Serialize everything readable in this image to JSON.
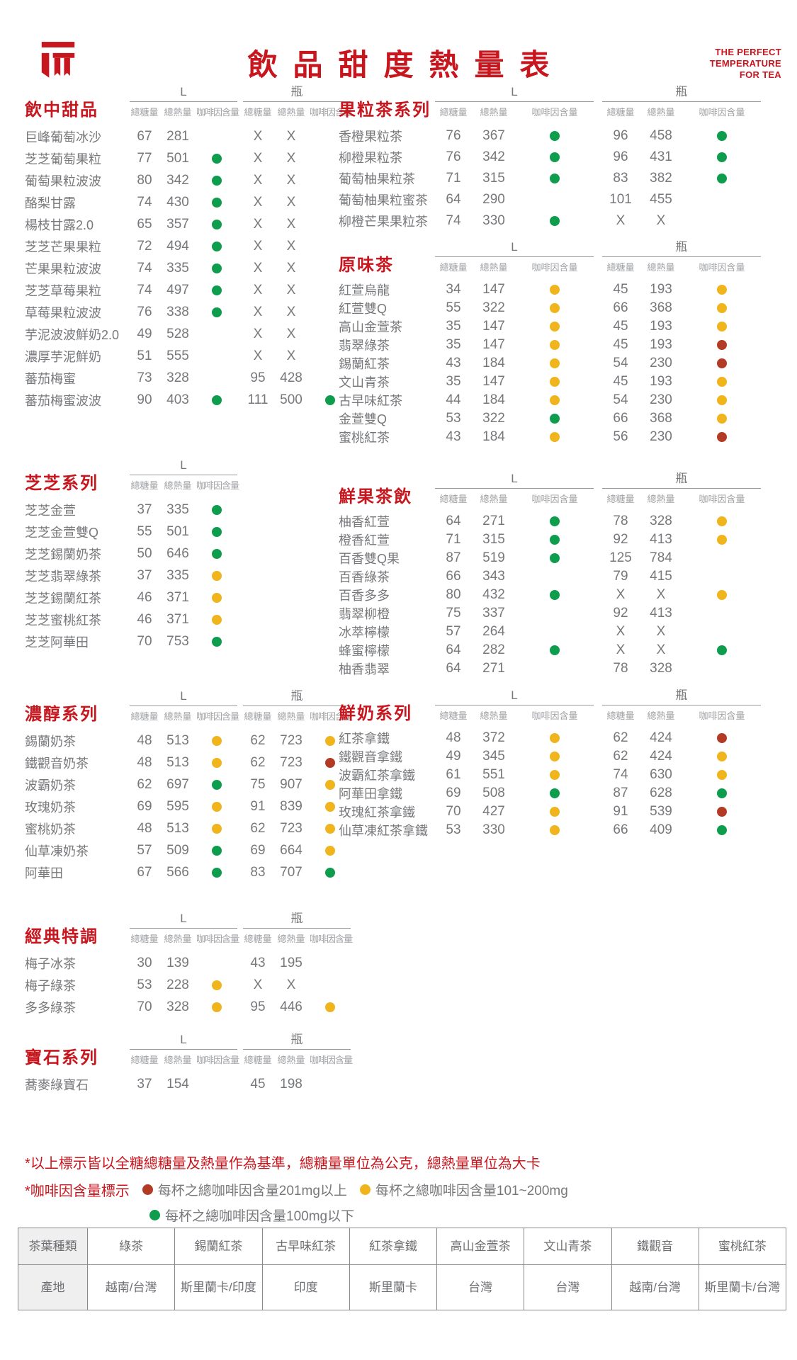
{
  "meta": {
    "title": "飲品甜度熱量表",
    "tagline": [
      "THE PERFECT",
      "TEMPERATURE",
      "FOR TEA"
    ]
  },
  "labels": {
    "size_l": "L",
    "size_bottle": "瓶",
    "sugar": "總糖量",
    "calories": "總熱量",
    "caffeine": "咖啡因含量"
  },
  "legend_colors": {
    "green": "#0e9c4d",
    "yellow": "#f0b41c",
    "red": "#b33a25"
  },
  "sections_left": [
    {
      "name": "飲中甜品",
      "has_bottle": true,
      "rows": [
        {
          "n": "巨峰葡萄冰沙",
          "l": [
            "67",
            "281",
            ""
          ],
          "b": [
            "X",
            "X",
            ""
          ]
        },
        {
          "n": "芝芝葡萄果粒",
          "l": [
            "77",
            "501",
            "green"
          ],
          "b": [
            "X",
            "X",
            ""
          ]
        },
        {
          "n": "葡萄果粒波波",
          "l": [
            "80",
            "342",
            "green"
          ],
          "b": [
            "X",
            "X",
            ""
          ]
        },
        {
          "n": "酪梨甘露",
          "l": [
            "74",
            "430",
            "green"
          ],
          "b": [
            "X",
            "X",
            ""
          ]
        },
        {
          "n": "楊枝甘露2.0",
          "l": [
            "65",
            "357",
            "green"
          ],
          "b": [
            "X",
            "X",
            ""
          ]
        },
        {
          "n": "芝芝芒果果粒",
          "l": [
            "72",
            "494",
            "green"
          ],
          "b": [
            "X",
            "X",
            ""
          ]
        },
        {
          "n": "芒果果粒波波",
          "l": [
            "74",
            "335",
            "green"
          ],
          "b": [
            "X",
            "X",
            ""
          ]
        },
        {
          "n": "芝芝草莓果粒",
          "l": [
            "74",
            "497",
            "green"
          ],
          "b": [
            "X",
            "X",
            ""
          ]
        },
        {
          "n": "草莓果粒波波",
          "l": [
            "76",
            "338",
            "green"
          ],
          "b": [
            "X",
            "X",
            ""
          ]
        },
        {
          "n": "芋泥波波鮮奶2.0",
          "l": [
            "49",
            "528",
            ""
          ],
          "b": [
            "X",
            "X",
            ""
          ]
        },
        {
          "n": "濃厚芋泥鮮奶",
          "l": [
            "51",
            "555",
            ""
          ],
          "b": [
            "X",
            "X",
            ""
          ]
        },
        {
          "n": "蕃茄梅蜜",
          "l": [
            "73",
            "328",
            ""
          ],
          "b": [
            "95",
            "428",
            ""
          ]
        },
        {
          "n": "蕃茄梅蜜波波",
          "l": [
            "90",
            "403",
            "green"
          ],
          "b": [
            "111",
            "500",
            "green"
          ]
        }
      ]
    },
    {
      "name": "芝芝系列",
      "has_bottle": false,
      "rows": [
        {
          "n": "芝芝金萱",
          "l": [
            "37",
            "335",
            "green"
          ],
          "b": null
        },
        {
          "n": "芝芝金萱雙Q",
          "l": [
            "55",
            "501",
            "green"
          ],
          "b": null
        },
        {
          "n": "芝芝錫蘭奶茶",
          "l": [
            "50",
            "646",
            "green"
          ],
          "b": null
        },
        {
          "n": "芝芝翡翠綠茶",
          "l": [
            "37",
            "335",
            "yellow"
          ],
          "b": null
        },
        {
          "n": "芝芝錫蘭紅茶",
          "l": [
            "46",
            "371",
            "yellow"
          ],
          "b": null
        },
        {
          "n": "芝芝蜜桃紅茶",
          "l": [
            "46",
            "371",
            "yellow"
          ],
          "b": null
        },
        {
          "n": "芝芝阿華田",
          "l": [
            "70",
            "753",
            "green"
          ],
          "b": null
        }
      ]
    },
    {
      "name": "濃醇系列",
      "has_bottle": true,
      "rows": [
        {
          "n": "錫蘭奶茶",
          "l": [
            "48",
            "513",
            "yellow"
          ],
          "b": [
            "62",
            "723",
            "yellow"
          ]
        },
        {
          "n": "鐵觀音奶茶",
          "l": [
            "48",
            "513",
            "yellow"
          ],
          "b": [
            "62",
            "723",
            "red"
          ]
        },
        {
          "n": "波霸奶茶",
          "l": [
            "62",
            "697",
            "green"
          ],
          "b": [
            "75",
            "907",
            "yellow"
          ]
        },
        {
          "n": "玫瑰奶茶",
          "l": [
            "69",
            "595",
            "yellow"
          ],
          "b": [
            "91",
            "839",
            "yellow"
          ]
        },
        {
          "n": "蜜桃奶茶",
          "l": [
            "48",
            "513",
            "yellow"
          ],
          "b": [
            "62",
            "723",
            "yellow"
          ]
        },
        {
          "n": "仙草凍奶茶",
          "l": [
            "57",
            "509",
            "green"
          ],
          "b": [
            "69",
            "664",
            "yellow"
          ]
        },
        {
          "n": "阿華田",
          "l": [
            "67",
            "566",
            "green"
          ],
          "b": [
            "83",
            "707",
            "green"
          ]
        }
      ]
    },
    {
      "name": "經典特調",
      "has_bottle": true,
      "rows": [
        {
          "n": "梅子冰茶",
          "l": [
            "30",
            "139",
            ""
          ],
          "b": [
            "43",
            "195",
            ""
          ]
        },
        {
          "n": "梅子綠茶",
          "l": [
            "53",
            "228",
            "yellow"
          ],
          "b": [
            "X",
            "X",
            ""
          ]
        },
        {
          "n": "多多綠茶",
          "l": [
            "70",
            "328",
            "yellow"
          ],
          "b": [
            "95",
            "446",
            "yellow"
          ]
        }
      ]
    },
    {
      "name": "寶石系列",
      "has_bottle": true,
      "rows": [
        {
          "n": "蕎麥綠寶石",
          "l": [
            "37",
            "154",
            ""
          ],
          "b": [
            "45",
            "198",
            ""
          ]
        }
      ]
    }
  ],
  "sections_right": [
    {
      "name": "果粒茶系列",
      "has_bottle": true,
      "rows": [
        {
          "n": "香橙果粒茶",
          "l": [
            "76",
            "367",
            "green"
          ],
          "b": [
            "96",
            "458",
            "green"
          ]
        },
        {
          "n": "柳橙果粒茶",
          "l": [
            "76",
            "342",
            "green"
          ],
          "b": [
            "96",
            "431",
            "green"
          ]
        },
        {
          "n": "葡萄柚果粒茶",
          "l": [
            "71",
            "315",
            "green"
          ],
          "b": [
            "83",
            "382",
            "green"
          ]
        },
        {
          "n": "葡萄柚果粒蜜茶",
          "l": [
            "64",
            "290",
            ""
          ],
          "b": [
            "101",
            "455",
            ""
          ]
        },
        {
          "n": "柳橙芒果果粒茶",
          "l": [
            "74",
            "330",
            "green"
          ],
          "b": [
            "X",
            "X",
            ""
          ]
        }
      ]
    },
    {
      "name": "原味茶",
      "has_bottle": true,
      "rows": [
        {
          "n": "紅萱烏龍",
          "l": [
            "34",
            "147",
            "yellow"
          ],
          "b": [
            "45",
            "193",
            "yellow"
          ]
        },
        {
          "n": "紅萱雙Q",
          "l": [
            "55",
            "322",
            "yellow"
          ],
          "b": [
            "66",
            "368",
            "yellow"
          ]
        },
        {
          "n": "高山金萱茶",
          "l": [
            "35",
            "147",
            "yellow"
          ],
          "b": [
            "45",
            "193",
            "yellow"
          ]
        },
        {
          "n": "翡翠綠茶",
          "l": [
            "35",
            "147",
            "yellow"
          ],
          "b": [
            "45",
            "193",
            "red"
          ]
        },
        {
          "n": "錫蘭紅茶",
          "l": [
            "43",
            "184",
            "yellow"
          ],
          "b": [
            "54",
            "230",
            "red"
          ]
        },
        {
          "n": "文山青茶",
          "l": [
            "35",
            "147",
            "yellow"
          ],
          "b": [
            "45",
            "193",
            "yellow"
          ]
        },
        {
          "n": "古早味紅茶",
          "l": [
            "44",
            "184",
            "yellow"
          ],
          "b": [
            "54",
            "230",
            "yellow"
          ]
        },
        {
          "n": "金萱雙Q",
          "l": [
            "53",
            "322",
            "green"
          ],
          "b": [
            "66",
            "368",
            "yellow"
          ]
        },
        {
          "n": "蜜桃紅茶",
          "l": [
            "43",
            "184",
            "yellow"
          ],
          "b": [
            "56",
            "230",
            "red"
          ]
        }
      ]
    },
    {
      "name": "鮮果茶飲",
      "has_bottle": true,
      "rows": [
        {
          "n": "柚香紅萱",
          "l": [
            "64",
            "271",
            "green"
          ],
          "b": [
            "78",
            "328",
            "yellow"
          ]
        },
        {
          "n": "橙香紅萱",
          "l": [
            "71",
            "315",
            "green"
          ],
          "b": [
            "92",
            "413",
            "yellow"
          ]
        },
        {
          "n": "百香雙Q果",
          "l": [
            "87",
            "519",
            "green"
          ],
          "b": [
            "125",
            "784",
            ""
          ]
        },
        {
          "n": "百香綠茶",
          "l": [
            "66",
            "343",
            ""
          ],
          "b": [
            "79",
            "415",
            ""
          ]
        },
        {
          "n": "百香多多",
          "l": [
            "80",
            "432",
            "green"
          ],
          "b": [
            "X",
            "X",
            "yellow"
          ]
        },
        {
          "n": "翡翠柳橙",
          "l": [
            "75",
            "337",
            ""
          ],
          "b": [
            "92",
            "413",
            ""
          ]
        },
        {
          "n": "冰萃檸檬",
          "l": [
            "57",
            "264",
            ""
          ],
          "b": [
            "X",
            "X",
            ""
          ]
        },
        {
          "n": "蜂蜜檸檬",
          "l": [
            "64",
            "282",
            "green"
          ],
          "b": [
            "X",
            "X",
            "green"
          ]
        },
        {
          "n": "柚香翡翠",
          "l": [
            "64",
            "271",
            ""
          ],
          "b": [
            "78",
            "328",
            ""
          ]
        }
      ]
    },
    {
      "name": "鮮奶系列",
      "has_bottle": true,
      "rows": [
        {
          "n": "紅茶拿鐵",
          "l": [
            "48",
            "372",
            "yellow"
          ],
          "b": [
            "62",
            "424",
            "red"
          ]
        },
        {
          "n": "鐵觀音拿鐵",
          "l": [
            "49",
            "345",
            "yellow"
          ],
          "b": [
            "62",
            "424",
            "yellow"
          ]
        },
        {
          "n": "波霸紅茶拿鐵",
          "l": [
            "61",
            "551",
            "yellow"
          ],
          "b": [
            "74",
            "630",
            "yellow"
          ]
        },
        {
          "n": "阿華田拿鐵",
          "l": [
            "69",
            "508",
            "green"
          ],
          "b": [
            "87",
            "628",
            "green"
          ]
        },
        {
          "n": "玫瑰紅茶拿鐵",
          "l": [
            "70",
            "427",
            "yellow"
          ],
          "b": [
            "91",
            "539",
            "red"
          ]
        },
        {
          "n": "仙草凍紅茶拿鐵",
          "l": [
            "53",
            "330",
            "yellow"
          ],
          "b": [
            "66",
            "409",
            "green"
          ]
        }
      ]
    }
  ],
  "notes": {
    "line1": "*以上標示皆以全糖總糖量及熱量作為基準，總糖量單位為公克，總熱量單位為大卡",
    "line2_label": "*咖啡因含量標示",
    "legend": [
      {
        "color": "red",
        "label": "每杯之總咖啡因含量201mg以上"
      },
      {
        "color": "yellow",
        "label": "每杯之總咖啡因含量101~200mg"
      },
      {
        "color": "green",
        "label": "每杯之總咖啡因含量100mg以下"
      }
    ]
  },
  "origin_table": {
    "rows": [
      [
        "茶葉種類",
        "綠茶",
        "錫蘭紅茶",
        "古早味紅茶",
        "紅茶拿鐵",
        "高山金萱茶",
        "文山青茶",
        "鐵觀音",
        "蜜桃紅茶"
      ],
      [
        "產地",
        "越南/台灣",
        "斯里蘭卡/印度",
        "印度",
        "斯里蘭卡",
        "台灣",
        "台灣",
        "越南/台灣",
        "斯里蘭卡/台灣"
      ]
    ]
  }
}
